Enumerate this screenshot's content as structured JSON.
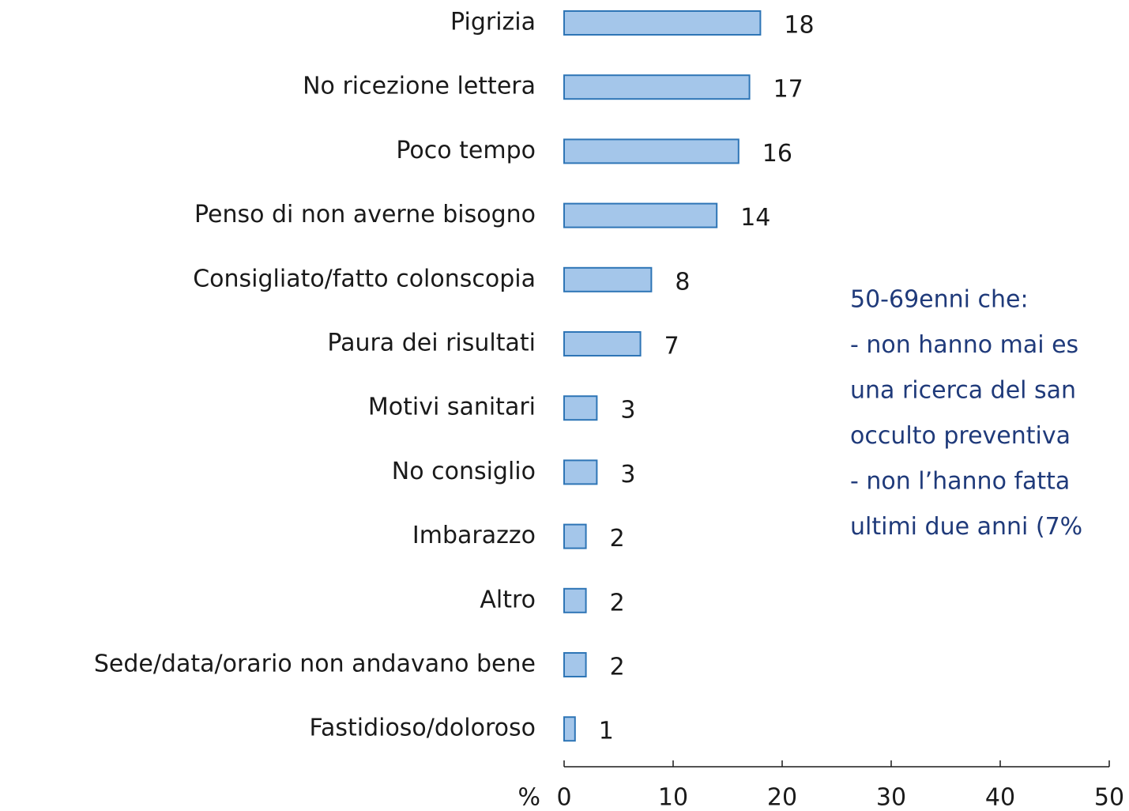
{
  "chart_data": {
    "type": "barh",
    "categories": [
      "Pigrizia",
      "No ricezione lettera",
      "Poco tempo",
      "Penso di non averne bisogno",
      "Consigliato/fatto colonscopia",
      "Paura dei risultati",
      "Motivi sanitari",
      "No consiglio",
      "Imbarazzo",
      "Altro",
      "Sede/data/orario non andavano bene",
      "Fastidioso/doloroso"
    ],
    "values": [
      18,
      17,
      16,
      14,
      8,
      7,
      3,
      3,
      2,
      2,
      2,
      1
    ],
    "color": "#a4c6ea",
    "edge_color": "#2e75b6",
    "xlabel": "%",
    "xlim": [
      0,
      50
    ],
    "xticks": [
      0,
      10,
      20,
      30,
      40,
      50
    ],
    "annotation": [
      "50-69enni che:",
      "- non hanno mai es",
      "una ricerca del san",
      "occulto preventiva",
      "- non l’hanno fatta",
      "ultimi due anni (7%"
    ],
    "annotation_color": "#1f3a7a"
  }
}
